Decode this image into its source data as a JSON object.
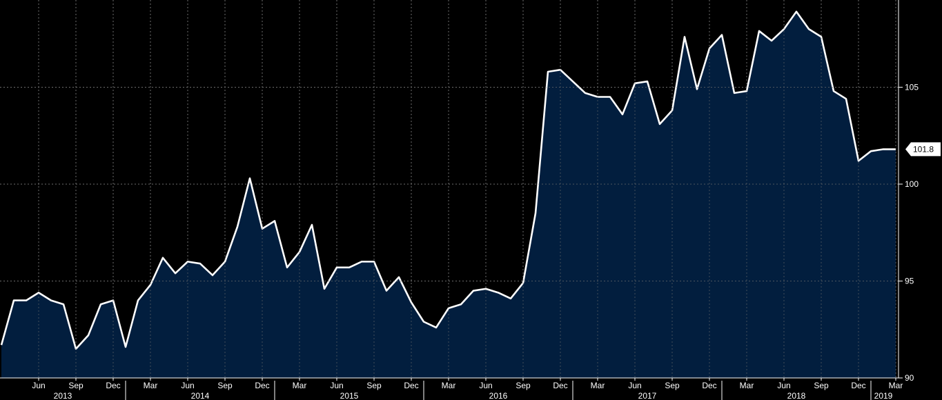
{
  "chart_data": {
    "type": "area",
    "title": "",
    "xlabel": "",
    "ylabel": "",
    "ylim": [
      90,
      109.5
    ],
    "y_ticks": [
      "90",
      "95",
      "100",
      "105"
    ],
    "y_tick_values": [
      90,
      95,
      100,
      105
    ],
    "grid": true,
    "colors": {
      "background": "#000000",
      "area_fill": "#021e3e",
      "line": "#ffffff",
      "grid": "#6e6e6e",
      "last_label_bg": "#ffffff"
    },
    "month_ticks": [
      "Jun",
      "Sep",
      "Dec",
      "Mar",
      "Jun",
      "Sep",
      "Dec",
      "Mar",
      "Jun",
      "Sep",
      "Dec",
      "Mar",
      "Jun",
      "Sep",
      "Dec",
      "Mar",
      "Jun",
      "Sep",
      "Dec",
      "Mar",
      "Jun",
      "Sep",
      "Dec",
      "Mar"
    ],
    "month_tick_dates": [
      "2013-06",
      "2013-09",
      "2013-12",
      "2014-03",
      "2014-06",
      "2014-09",
      "2014-12",
      "2015-03",
      "2015-06",
      "2015-09",
      "2015-12",
      "2016-03",
      "2016-06",
      "2016-09",
      "2016-12",
      "2017-03",
      "2017-06",
      "2017-09",
      "2017-12",
      "2018-03",
      "2018-06",
      "2018-09",
      "2018-12",
      "2019-03"
    ],
    "year_labels": [
      "2013",
      "2014",
      "2015",
      "2016",
      "2017",
      "2018",
      "2019"
    ],
    "last_value_label": "101.8",
    "x": [
      "2013-03",
      "2013-04",
      "2013-05",
      "2013-06",
      "2013-07",
      "2013-08",
      "2013-09",
      "2013-10",
      "2013-11",
      "2013-12",
      "2014-01",
      "2014-02",
      "2014-03",
      "2014-04",
      "2014-05",
      "2014-06",
      "2014-07",
      "2014-08",
      "2014-09",
      "2014-10",
      "2014-11",
      "2014-12",
      "2015-01",
      "2015-02",
      "2015-03",
      "2015-04",
      "2015-05",
      "2015-06",
      "2015-07",
      "2015-08",
      "2015-09",
      "2015-10",
      "2015-11",
      "2015-12",
      "2016-01",
      "2016-02",
      "2016-03",
      "2016-04",
      "2016-05",
      "2016-06",
      "2016-07",
      "2016-08",
      "2016-09",
      "2016-10",
      "2016-11",
      "2016-12",
      "2017-01",
      "2017-02",
      "2017-03",
      "2017-04",
      "2017-05",
      "2017-06",
      "2017-07",
      "2017-08",
      "2017-09",
      "2017-10",
      "2017-11",
      "2017-12",
      "2018-01",
      "2018-02",
      "2018-03",
      "2018-04",
      "2018-05",
      "2018-06",
      "2018-07",
      "2018-08",
      "2018-09",
      "2018-10",
      "2018-11",
      "2018-12",
      "2019-01",
      "2019-02",
      "2019-03"
    ],
    "series": [
      {
        "values": [
          91.7,
          94.0,
          94.0,
          94.4,
          94.0,
          93.8,
          91.5,
          92.2,
          93.8,
          94.0,
          91.6,
          94.0,
          94.8,
          96.2,
          95.4,
          96.0,
          95.9,
          95.3,
          96.0,
          97.8,
          100.3,
          97.7,
          98.1,
          95.7,
          96.5,
          97.9,
          94.6,
          95.7,
          95.7,
          96.0,
          96.0,
          94.5,
          95.2,
          93.9,
          92.9,
          92.6,
          93.6,
          93.8,
          94.5,
          94.6,
          94.4,
          94.1,
          94.9,
          98.5,
          105.8,
          105.9,
          105.3,
          104.7,
          104.5,
          104.5,
          103.6,
          105.2,
          105.3,
          103.1,
          103.8,
          107.6,
          104.9,
          107.0,
          107.7,
          104.7,
          104.8,
          107.9,
          107.4,
          108.0,
          108.9,
          108.0,
          107.6,
          104.8,
          104.4,
          101.2,
          101.7,
          101.8,
          101.8
        ]
      }
    ]
  }
}
